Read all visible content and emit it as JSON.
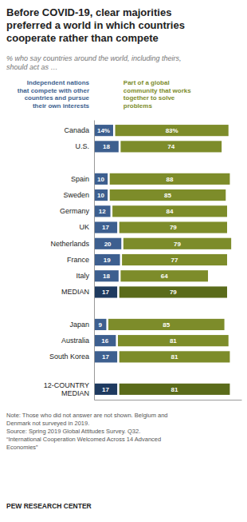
{
  "chart_data": {
    "type": "bar",
    "orientation": "horizontal",
    "stacked": true,
    "data_labels": true,
    "tick_labels": "y",
    "title": "Before COVID-19, clear majorities\npreferred a world in which countries\ncooperate rather than compete",
    "subtitle": "% who say countries around the world, including theirs,\nshould act as …",
    "annotations": [
      "Note: Those who did not answer are not shown. Belgium and\nDenmark not surveyed in 2019.\nSource: Spring 2019 Global Attitudes Survey. Q32.\n“International Cooperation Welcomed Across 14 Advanced\nEconomies”",
      "PEW RESEARCH CENTER"
    ],
    "categories": [
      "Canada",
      "U.S.",
      null,
      "Spain",
      "Sweden",
      "Germany",
      "UK",
      "Netherlands",
      "France",
      "Italy",
      "MEDIAN",
      null,
      "Japan",
      "Australia",
      "South Korea",
      null,
      "12-COUNTRY\nMEDIAN"
    ],
    "xlim": [
      0,
      108
    ],
    "series": [
      {
        "name": "Independent nations\nthat compete with other\ncountries and pursue\ntheir own interests",
        "color": "#3d5f8f",
        "colors": [
          "#3d5f8f",
          "#3d5f8f",
          null,
          "#3d5f8f",
          "#3d5f8f",
          "#3d5f8f",
          "#3d5f8f",
          "#3d5f8f",
          "#3d5f8f",
          "#3d5f8f",
          "#1e3a5f",
          null,
          "#3d5f8f",
          "#3d5f8f",
          "#3d5f8f",
          null,
          "#1e3a5f"
        ],
        "values": [
          14,
          18,
          null,
          10,
          10,
          12,
          17,
          20,
          19,
          18,
          17,
          null,
          9,
          16,
          17,
          null,
          17
        ],
        "value_labels": [
          "14%",
          "18",
          null,
          "10",
          "10",
          "12",
          "17",
          "20",
          "19",
          "18",
          "17",
          null,
          "9",
          "16",
          "17",
          null,
          "17"
        ]
      },
      {
        "name": "Part of a global\ncommunity that works\ntogether to solve\nproblems",
        "color": "#7d8c2a",
        "colors": [
          "#7d8c2a",
          "#7d8c2a",
          null,
          "#7d8c2a",
          "#7d8c2a",
          "#7d8c2a",
          "#7d8c2a",
          "#7d8c2a",
          "#7d8c2a",
          "#7d8c2a",
          "#5a6b1a",
          null,
          "#7d8c2a",
          "#7d8c2a",
          "#7d8c2a",
          null,
          "#5a6b1a"
        ],
        "values": [
          83,
          74,
          null,
          88,
          85,
          84,
          79,
          79,
          77,
          64,
          79,
          null,
          85,
          81,
          81,
          null,
          81
        ],
        "value_labels": [
          "83%",
          "74",
          null,
          "88",
          "85",
          "84",
          "79",
          "79",
          "77",
          "64",
          "79",
          null,
          "85",
          "81",
          "81",
          null,
          "81"
        ]
      }
    ]
  }
}
